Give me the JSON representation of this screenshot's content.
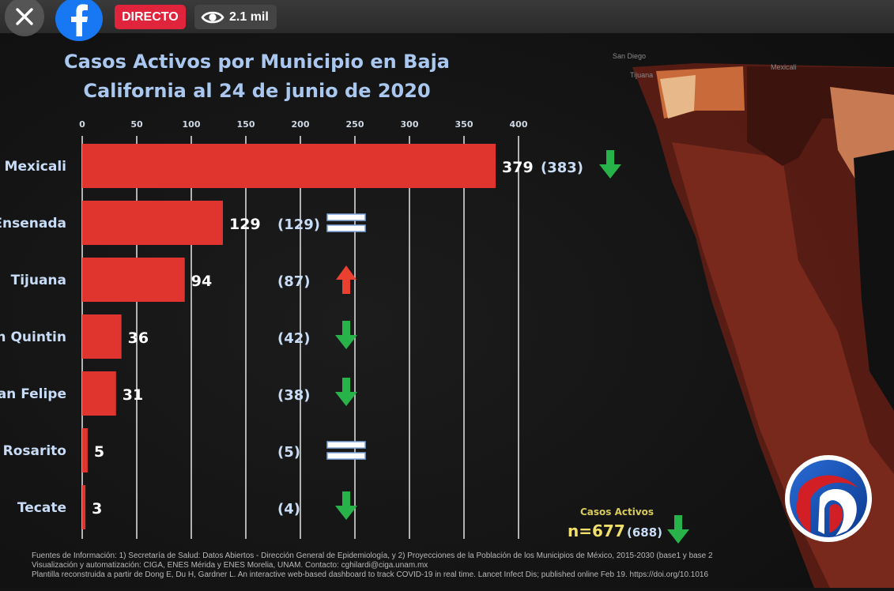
{
  "stream": {
    "live_label": "DIRECTO",
    "viewers": "2.1 mil"
  },
  "chart_data": {
    "type": "bar",
    "orientation": "horizontal",
    "title": "Casos Activos por Municipio en Baja California al 24 de junio de 2020",
    "title_lines": [
      "Casos Activos por Municipio en Baja",
      "California al 24 de junio de 2020"
    ],
    "categories": [
      "Mexicali",
      "Ensenada",
      "Tijuana",
      "San Quintin",
      "San Felipe",
      "Rosarito",
      "Tecate"
    ],
    "category_labels": [
      "Mexicali",
      "Ensenada",
      "Tijuana",
      "an Quintin",
      "San Felipe",
      "Rosarito",
      "Tecate"
    ],
    "values": [
      379,
      129,
      94,
      36,
      31,
      5,
      3
    ],
    "value_labels": [
      "379",
      "129",
      "94",
      "36",
      "31",
      "5",
      "3"
    ],
    "previous_values": [
      383,
      129,
      87,
      42,
      38,
      5,
      4
    ],
    "previous_labels": [
      "(383)",
      "(129)",
      "(87)",
      "(42)",
      "(38)",
      "(5)",
      "(4)"
    ],
    "trends": [
      "down",
      "equal",
      "up",
      "down",
      "down",
      "equal",
      "down"
    ],
    "xlim": [
      0,
      400
    ],
    "xticks": [
      0,
      50,
      100,
      150,
      200,
      250,
      300,
      350,
      400
    ],
    "grid": true,
    "colors": {
      "bar": "#e0342f",
      "title": "#a9c7ef",
      "value_text": "#ffffff",
      "prev_text": "#c9dcf6",
      "down": "#27b34a",
      "up": "#e9402f",
      "equal": "#ffffff",
      "total_label": "#d8ca5a",
      "total_value": "#f1df6b"
    },
    "total": {
      "label": "Casos Activos",
      "value": "n=677",
      "previous": "(688)",
      "trend": "down"
    }
  },
  "footer": {
    "line1": "Fuentes de Información: 1) Secretaría de Salud: Datos Abiertos - Dirección General de Epidemiología, y 2) Proyecciones de la Población de los Municipios de México, 2015-2030 (base1 y base 2",
    "line2": "Visualización y automatización: CIGA, ENES Mérida y ENES Morelia, UNAM. Contacto: cghilardi@ciga.unam.mx",
    "line3": "Plantilla reconstruida a partir de Dong E, Du H, Gardner L. An interactive web-based dashboard to track COVID-19 in real time. Lancet Infect Dis; published online Feb 19. https://doi.org/10.1016"
  },
  "map_labels": {
    "city1": "San Diego",
    "city2": "Tijuana",
    "city3": "Mexicali"
  },
  "icons": {
    "close": "close-icon",
    "facebook": "facebook-icon",
    "eye": "eye-icon",
    "logo": "channel-logo"
  }
}
